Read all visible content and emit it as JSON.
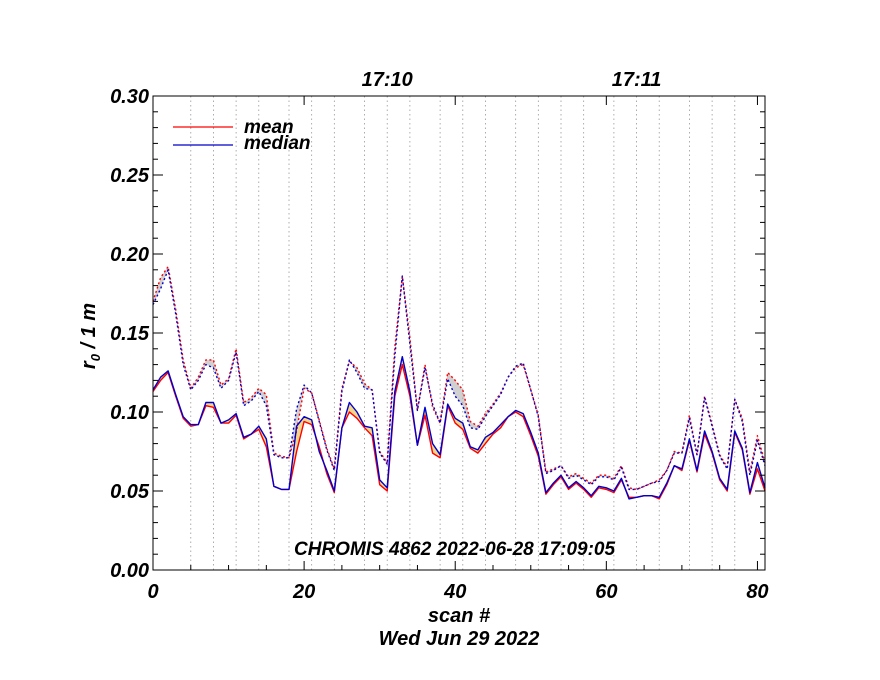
{
  "chart_data": {
    "type": "line",
    "title": "",
    "annotation": "CHROMIS 4862 2022-06-28 17:09:05",
    "xlabel": "scan #",
    "xlabel2": "Wed Jun 29 2022",
    "ylabel_main": "r",
    "ylabel_sub": "0",
    "ylabel_rest": " / 1 m",
    "xlim": [
      0,
      81
    ],
    "ylim": [
      0,
      0.3
    ],
    "x_ticks": [
      0,
      20,
      40,
      60,
      80
    ],
    "y_ticks": [
      0.0,
      0.05,
      0.1,
      0.15,
      0.2,
      0.25,
      0.3
    ],
    "y_tick_labels": [
      "0.00",
      "0.05",
      "0.10",
      "0.15",
      "0.20",
      "0.25",
      "0.30"
    ],
    "top_axis_labels": [
      {
        "label": "17:10",
        "x": 31
      },
      {
        "label": "17:11",
        "x": 64
      }
    ],
    "time_gridlines_x": [
      0,
      5,
      8,
      11,
      14,
      18,
      21,
      24,
      28,
      31,
      34,
      38,
      41,
      44,
      48,
      51,
      54,
      57,
      61,
      64,
      67,
      71,
      74,
      77,
      81
    ],
    "legend": {
      "position": "top-left",
      "entries": [
        "mean",
        "median"
      ]
    },
    "colors": {
      "mean": "#ff0000",
      "median": "#0000cc",
      "fill_solid": "#f2d78a",
      "fill_dotted": "#d0d0d0"
    },
    "series": [
      {
        "name": "mean",
        "style": "solid",
        "values": [
          0.113,
          0.12,
          0.125,
          0.11,
          0.096,
          0.091,
          0.092,
          0.104,
          0.103,
          0.093,
          0.093,
          0.098,
          0.083,
          0.086,
          0.089,
          0.078,
          0.053,
          0.051,
          0.051,
          0.075,
          0.094,
          0.092,
          0.078,
          0.061,
          0.049,
          0.09,
          0.1,
          0.096,
          0.09,
          0.085,
          0.054,
          0.05,
          0.11,
          0.13,
          0.11,
          0.079,
          0.098,
          0.074,
          0.071,
          0.104,
          0.093,
          0.089,
          0.077,
          0.074,
          0.08,
          0.086,
          0.09,
          0.097,
          0.1,
          0.097,
          0.085,
          0.072,
          0.048,
          0.054,
          0.059,
          0.051,
          0.055,
          0.051,
          0.046,
          0.052,
          0.051,
          0.049,
          0.057,
          0.046,
          0.046,
          0.047,
          0.047,
          0.045,
          0.054,
          0.066,
          0.063,
          0.082,
          0.062,
          0.086,
          0.074,
          0.057,
          0.05,
          0.087,
          0.076,
          0.048,
          0.064,
          0.05
        ]
      },
      {
        "name": "median",
        "style": "solid",
        "values": [
          0.114,
          0.122,
          0.126,
          0.111,
          0.097,
          0.092,
          0.092,
          0.106,
          0.106,
          0.093,
          0.095,
          0.099,
          0.084,
          0.086,
          0.091,
          0.083,
          0.053,
          0.051,
          0.051,
          0.091,
          0.097,
          0.095,
          0.075,
          0.063,
          0.05,
          0.09,
          0.106,
          0.1,
          0.091,
          0.09,
          0.057,
          0.052,
          0.113,
          0.135,
          0.113,
          0.079,
          0.103,
          0.08,
          0.073,
          0.105,
          0.096,
          0.093,
          0.078,
          0.076,
          0.084,
          0.087,
          0.092,
          0.097,
          0.101,
          0.099,
          0.087,
          0.074,
          0.049,
          0.055,
          0.06,
          0.052,
          0.056,
          0.052,
          0.047,
          0.053,
          0.052,
          0.05,
          0.058,
          0.045,
          0.046,
          0.047,
          0.047,
          0.046,
          0.055,
          0.066,
          0.064,
          0.083,
          0.063,
          0.088,
          0.075,
          0.058,
          0.051,
          0.088,
          0.077,
          0.049,
          0.068,
          0.052
        ]
      },
      {
        "style": "dotted",
        "color": "#ff0000",
        "values": [
          0.17,
          0.185,
          0.192,
          0.165,
          0.133,
          0.115,
          0.122,
          0.133,
          0.133,
          0.117,
          0.121,
          0.14,
          0.106,
          0.109,
          0.115,
          0.111,
          0.074,
          0.072,
          0.071,
          0.088,
          0.115,
          0.112,
          0.095,
          0.077,
          0.064,
          0.115,
          0.132,
          0.128,
          0.118,
          0.114,
          0.075,
          0.068,
          0.141,
          0.186,
          0.147,
          0.101,
          0.13,
          0.103,
          0.093,
          0.125,
          0.12,
          0.114,
          0.094,
          0.091,
          0.099,
          0.105,
          0.112,
          0.122,
          0.128,
          0.13,
          0.114,
          0.098,
          0.062,
          0.064,
          0.066,
          0.059,
          0.061,
          0.058,
          0.055,
          0.06,
          0.06,
          0.058,
          0.066,
          0.052,
          0.051,
          0.053,
          0.055,
          0.057,
          0.063,
          0.075,
          0.074,
          0.098,
          0.073,
          0.11,
          0.092,
          0.073,
          0.065,
          0.108,
          0.096,
          0.062,
          0.085,
          0.068
        ]
      },
      {
        "style": "dotted",
        "color": "#0000cc",
        "values": [
          0.168,
          0.178,
          0.19,
          0.162,
          0.13,
          0.114,
          0.12,
          0.13,
          0.128,
          0.115,
          0.12,
          0.138,
          0.104,
          0.107,
          0.113,
          0.104,
          0.073,
          0.071,
          0.071,
          0.102,
          0.117,
          0.112,
          0.094,
          0.076,
          0.063,
          0.113,
          0.133,
          0.125,
          0.115,
          0.114,
          0.074,
          0.067,
          0.135,
          0.186,
          0.143,
          0.101,
          0.128,
          0.105,
          0.093,
          0.121,
          0.11,
          0.104,
          0.09,
          0.089,
          0.097,
          0.104,
          0.111,
          0.122,
          0.129,
          0.131,
          0.114,
          0.097,
          0.061,
          0.063,
          0.066,
          0.058,
          0.06,
          0.057,
          0.054,
          0.059,
          0.059,
          0.057,
          0.065,
          0.051,
          0.051,
          0.053,
          0.055,
          0.056,
          0.063,
          0.074,
          0.074,
          0.096,
          0.073,
          0.109,
          0.091,
          0.072,
          0.064,
          0.108,
          0.094,
          0.06,
          0.082,
          0.066
        ]
      }
    ]
  }
}
